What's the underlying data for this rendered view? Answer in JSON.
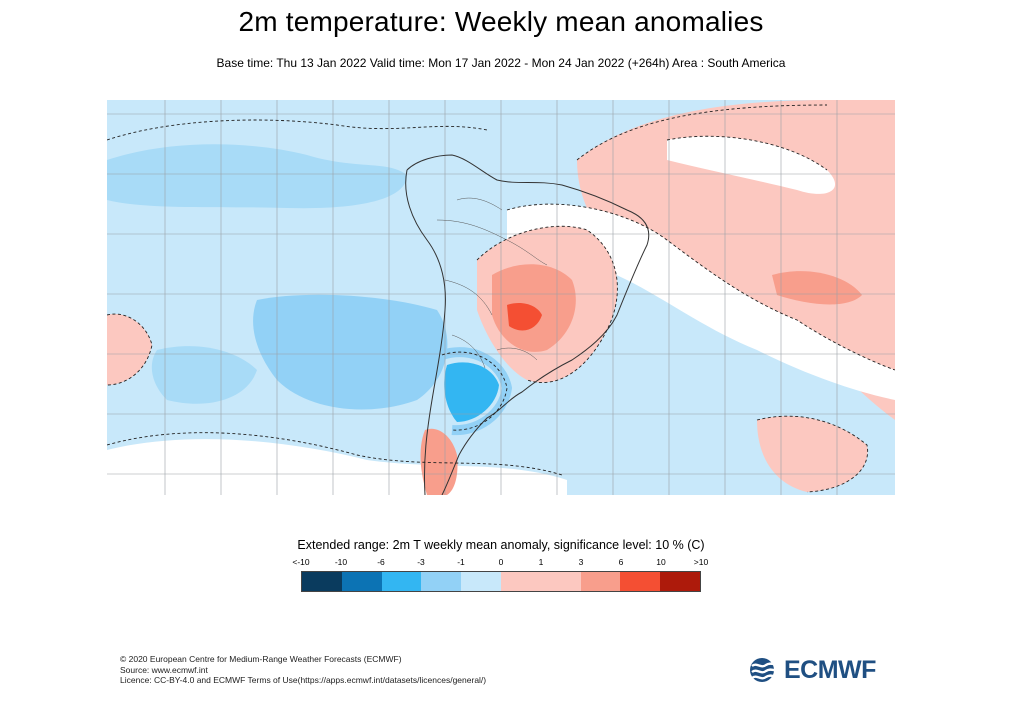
{
  "header": {
    "title": "2m temperature: Weekly mean anomalies",
    "subtitle": "Base time: Thu 13 Jan 2022 Valid time: Mon 17 Jan 2022 - Mon 24 Jan 2022 (+264h) Area : South America"
  },
  "map": {
    "region": "South America",
    "grid": true,
    "significance_contour": "dashed"
  },
  "colorbar": {
    "caption": "Extended range: 2m T weekly mean anomaly, significance level: 10 % (C)",
    "ticks": [
      "<-10",
      "-10",
      "-6",
      "-3",
      "-1",
      "0",
      "1",
      "3",
      "6",
      "10",
      ">10"
    ],
    "colors": [
      "#0a3b5e",
      "#0c73b4",
      "#33b6f2",
      "#92d1f6",
      "#c8e8fa",
      "#ffffff",
      "#fcc8c0",
      "#f89e8c",
      "#f44f33",
      "#ad1a0b",
      "#5d0a04"
    ]
  },
  "footer": {
    "line1": "© 2020 European Centre for Medium-Range Weather Forecasts (ECMWF)",
    "line2": "Source: www.ecmwf.int",
    "line3": "Licence: CC-BY-4.0 and ECMWF Terms of Use(https://apps.ecmwf.int/datasets/licences/general/)"
  },
  "logo": {
    "text": "ECMWF"
  }
}
